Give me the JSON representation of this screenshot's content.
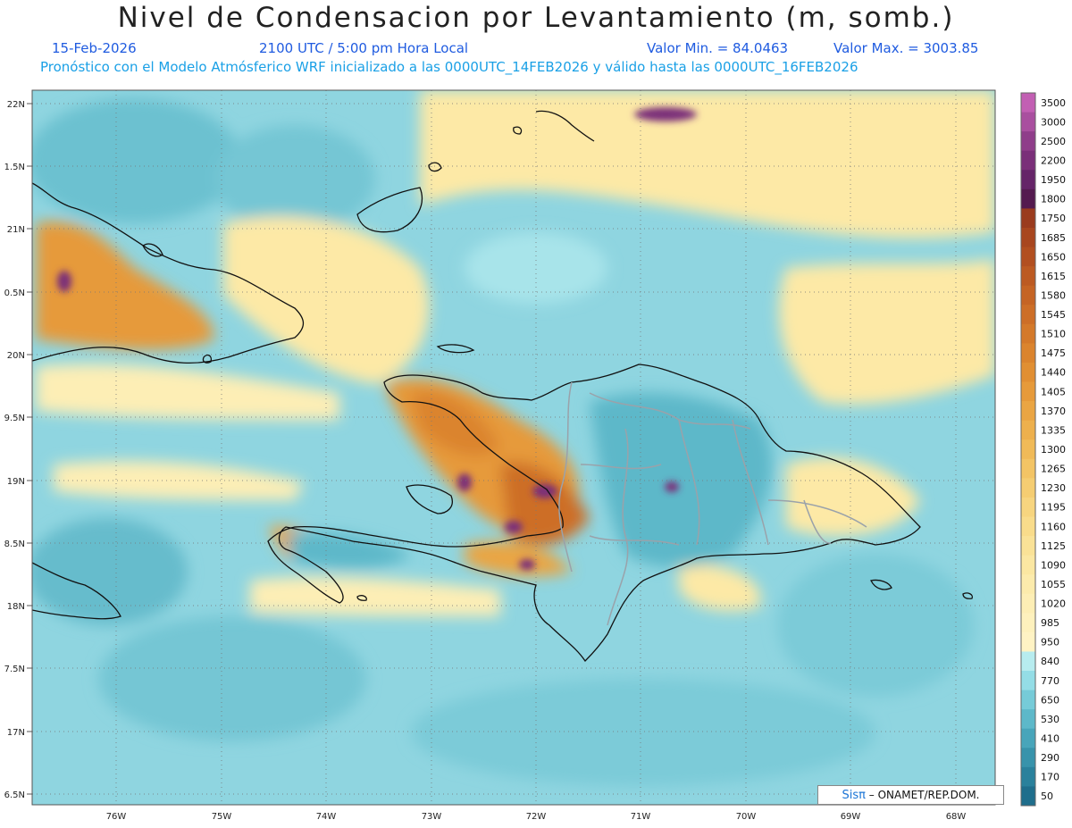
{
  "header": {
    "title": "Nivel de Condensacion por Levantamiento (m, somb.)",
    "date": "15-Feb-2026",
    "time": "2100 UTC / 5:00 pm Hora Local",
    "valmin": "Valor Min. = 84.0463",
    "valmax": "Valor Max. = 3003.85",
    "forecast": "Pronóstico con el Modelo Atmósferico WRF inicializado a las 0000UTC_14FEB2026 y válido hasta las  0000UTC_16FEB2026"
  },
  "axes": {
    "lon_labels": [
      "76W",
      "75W",
      "74W",
      "73W",
      "72W",
      "71W",
      "70W",
      "69W",
      "68W"
    ],
    "lat_labels": [
      "22N",
      "1.5N",
      "21N",
      "0.5N",
      "20N",
      "9.5N",
      "19N",
      "8.5N",
      "18N",
      "7.5N",
      "17N",
      "6.5N"
    ]
  },
  "colorbar": {
    "labels": [
      "3500",
      "3000",
      "2500",
      "2200",
      "1950",
      "1800",
      "1750",
      "1685",
      "1650",
      "1615",
      "1580",
      "1545",
      "1510",
      "1475",
      "1440",
      "1405",
      "1370",
      "1335",
      "1300",
      "1265",
      "1230",
      "1195",
      "1160",
      "1125",
      "1090",
      "1055",
      "1020",
      "985",
      "950",
      "840",
      "770",
      "650",
      "530",
      "410",
      "290",
      "170",
      "50"
    ],
    "colors": [
      "#c25fb3",
      "#a94f9f",
      "#8f3d8a",
      "#7a2f79",
      "#652468",
      "#541a4f",
      "#9a3b1e",
      "#a8461f",
      "#b24f20",
      "#bc5a22",
      "#c56424",
      "#cd6e27",
      "#d4792a",
      "#db842e",
      "#e18f33",
      "#e69a3a",
      "#eaa543",
      "#edb04d",
      "#f0ba58",
      "#f3c465",
      "#f5cd72",
      "#f7d57f",
      "#f9dc8b",
      "#fae297",
      "#fbe7a2",
      "#fcebac",
      "#fdeeb5",
      "#fef1bd",
      "#fff3c4",
      "#b7ecef",
      "#94dde6",
      "#76cbd8",
      "#5db8c9",
      "#48a5ba",
      "#3893ab",
      "#2a819c",
      "#1f6e8c"
    ]
  },
  "credit": {
    "logo": "Sisπ",
    "text": "– ONAMET/REP.DOM."
  }
}
